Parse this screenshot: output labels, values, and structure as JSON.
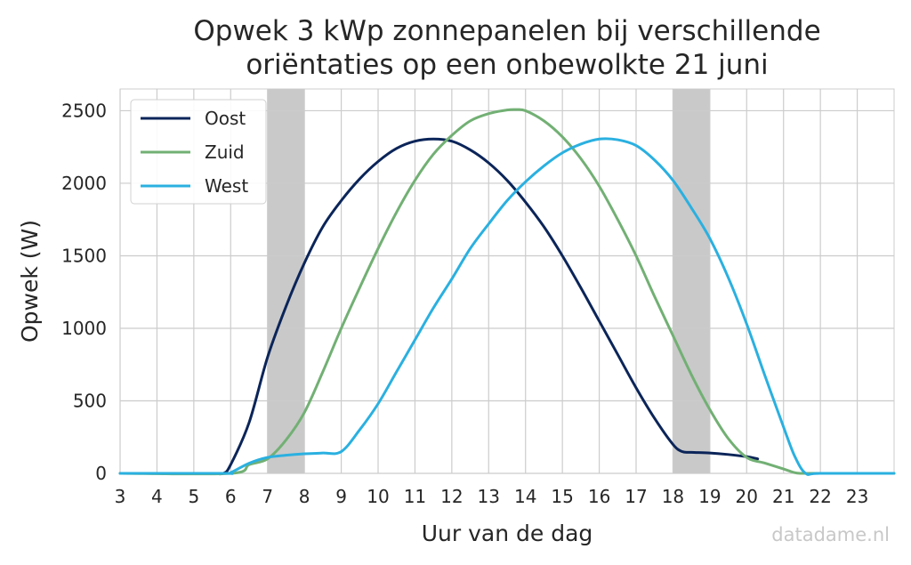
{
  "chart_data": {
    "type": "line",
    "title_line1": "Opwek 3 kWp zonnepanelen bij verschillende",
    "title_line2": "oriëntaties op een onbewolkte 21 juni",
    "xlabel": "Uur van de dag",
    "ylabel": "Opwek (W)",
    "xlim": [
      3,
      24
    ],
    "ylim": [
      0,
      2650
    ],
    "xticks": [
      3,
      4,
      5,
      6,
      7,
      8,
      9,
      10,
      11,
      12,
      13,
      14,
      15,
      16,
      17,
      18,
      19,
      20,
      21,
      22,
      23
    ],
    "yticks": [
      0,
      500,
      1000,
      1500,
      2000,
      2500
    ],
    "grid": true,
    "legend_position": "top-left",
    "shaded_hours": [
      [
        7,
        8
      ],
      [
        18,
        19
      ]
    ],
    "shade_color": "#c9c9c9",
    "series": [
      {
        "name": "Oost",
        "color": "#0b2559",
        "x": [
          3,
          4,
          5,
          5.5,
          5.8,
          6,
          6.5,
          7,
          7.5,
          8,
          8.5,
          9,
          9.5,
          10,
          10.5,
          11,
          11.5,
          12,
          12.5,
          13,
          13.5,
          14,
          14.5,
          15,
          15.5,
          16,
          16.5,
          17,
          17.5,
          18,
          18.25,
          18.5,
          19,
          19.5,
          20,
          20.3
        ],
        "y": [
          0,
          0,
          0,
          0,
          0,
          60,
          350,
          800,
          1150,
          1450,
          1700,
          1880,
          2030,
          2150,
          2240,
          2290,
          2305,
          2290,
          2230,
          2140,
          2020,
          1870,
          1700,
          1500,
          1280,
          1050,
          820,
          590,
          380,
          200,
          150,
          145,
          140,
          130,
          115,
          100
        ]
      },
      {
        "name": "Zuid",
        "color": "#72b074",
        "x": [
          3,
          6,
          6.5,
          7,
          7.5,
          8,
          8.5,
          9,
          9.5,
          10,
          10.5,
          11,
          11.5,
          12,
          12.5,
          13,
          13.5,
          13.75,
          14,
          14.5,
          15,
          15.5,
          16,
          16.5,
          17,
          17.5,
          18,
          18.5,
          19,
          19.5,
          20,
          20.5,
          21,
          21.3,
          21.5,
          22,
          24
        ],
        "y": [
          0,
          0,
          60,
          100,
          230,
          420,
          700,
          1000,
          1280,
          1550,
          1800,
          2020,
          2200,
          2330,
          2430,
          2480,
          2505,
          2508,
          2500,
          2430,
          2320,
          2170,
          1980,
          1750,
          1500,
          1220,
          950,
          680,
          440,
          240,
          110,
          70,
          30,
          5,
          0,
          0,
          0
        ]
      },
      {
        "name": "West",
        "color": "#2ab0e0",
        "x": [
          3,
          5.8,
          6,
          6.5,
          7,
          7.5,
          8,
          8.5,
          9,
          9.5,
          10,
          10.5,
          11,
          11.5,
          12,
          12.5,
          13,
          13.5,
          14,
          14.5,
          15,
          15.5,
          16,
          16.5,
          17,
          17.5,
          18,
          18.5,
          19,
          19.5,
          20,
          20.5,
          21,
          21.3,
          21.6,
          22,
          24
        ],
        "y": [
          0,
          0,
          5,
          70,
          110,
          125,
          135,
          140,
          150,
          300,
          480,
          700,
          920,
          1140,
          1340,
          1550,
          1720,
          1880,
          2010,
          2120,
          2210,
          2270,
          2305,
          2300,
          2260,
          2160,
          2020,
          1830,
          1620,
          1350,
          1030,
          670,
          320,
          120,
          0,
          0,
          0
        ]
      }
    ]
  },
  "watermark": "datadame.nl"
}
